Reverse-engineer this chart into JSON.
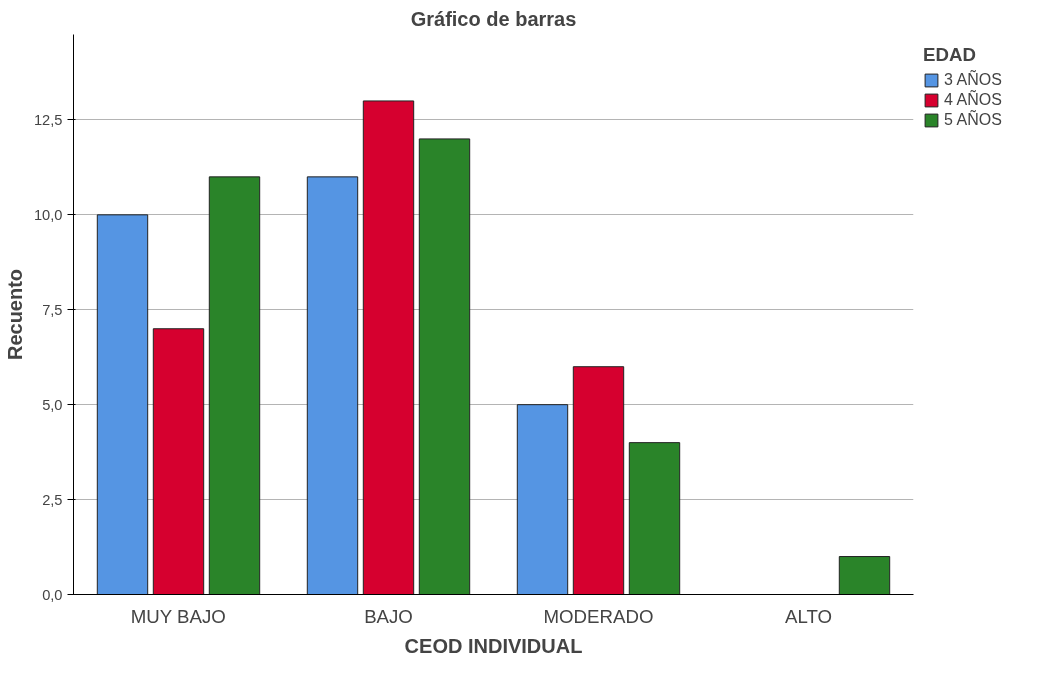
{
  "chart_data": {
    "type": "bar",
    "title": "Gráfico de barras",
    "xlabel": "CEOD INDIVIDUAL",
    "ylabel": "Recuento",
    "legend_title": "EDAD",
    "categories": [
      "MUY BAJO",
      "BAJO",
      "MODERADO",
      "ALTO"
    ],
    "series": [
      {
        "name": "3 AÑOS",
        "color": "#5595e3",
        "values": [
          10,
          11,
          5,
          0
        ]
      },
      {
        "name": "4 AÑOS",
        "color": "#d6002f",
        "values": [
          7,
          13,
          6,
          0
        ]
      },
      {
        "name": "5 AÑOS",
        "color": "#2a8429",
        "values": [
          11,
          12,
          4,
          1
        ]
      }
    ],
    "ylim": [
      0,
      14.75
    ],
    "yticks": [
      {
        "value": 0,
        "label": "0,0"
      },
      {
        "value": 2.5,
        "label": "2,5"
      },
      {
        "value": 5,
        "label": "5,0"
      },
      {
        "value": 7.5,
        "label": "7,5"
      },
      {
        "value": 10,
        "label": "10,0"
      },
      {
        "value": 12.5,
        "label": "12,5"
      }
    ],
    "grid": "y",
    "legend": "right"
  }
}
